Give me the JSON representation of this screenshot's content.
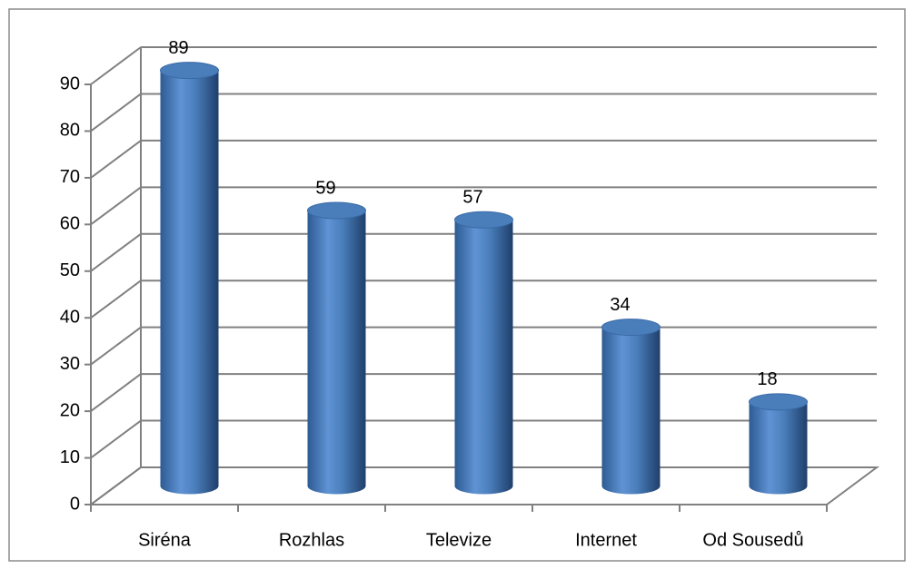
{
  "chart_data": {
    "type": "bar",
    "categories": [
      "Siréna",
      "Rozhlas",
      "Televize",
      "Internet",
      "Od Sousedů"
    ],
    "values": [
      89,
      59,
      57,
      34,
      18
    ],
    "color": "#4a7ebb",
    "ylim": [
      0,
      90
    ],
    "yticks": [
      0,
      10,
      20,
      30,
      40,
      50,
      60,
      70,
      80,
      90
    ],
    "grid": true
  }
}
